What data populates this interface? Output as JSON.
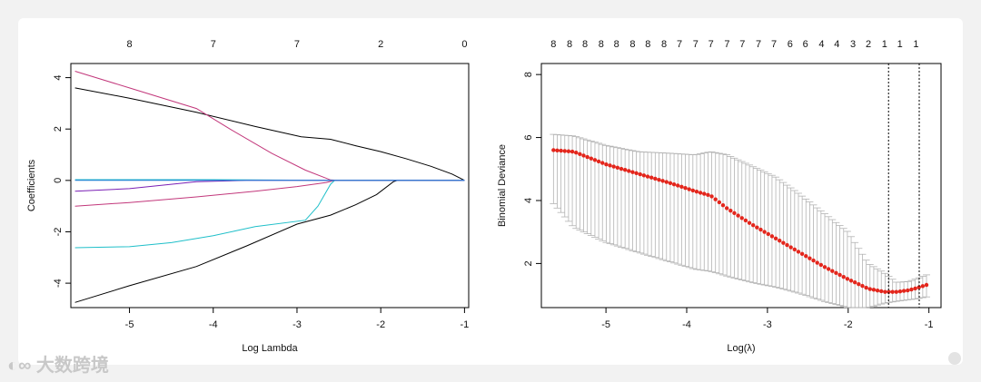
{
  "watermark": {
    "text": "大数跨境",
    "logo": "chat-bubble-logo"
  },
  "chart_data": [
    {
      "type": "line",
      "title": "",
      "xlabel": "Log Lambda",
      "ylabel": "Coefficients",
      "xlim": [
        -5.7,
        -0.95
      ],
      "ylim": [
        -4.95,
        4.55
      ],
      "xticks": [
        -5,
        -4,
        -3,
        -2,
        -1
      ],
      "yticks": [
        -4,
        -2,
        0,
        2,
        4
      ],
      "top_axis": {
        "positions": [
          -5,
          -4,
          -3,
          -2,
          -1
        ],
        "labels": [
          "8",
          "7",
          "7",
          "2",
          "0"
        ]
      },
      "series": [
        {
          "color": "#000000",
          "points": [
            [
              -5.65,
              3.6
            ],
            [
              -5.0,
              3.2
            ],
            [
              -4.2,
              2.65
            ],
            [
              -3.5,
              2.1
            ],
            [
              -2.95,
              1.7
            ],
            [
              -2.6,
              1.6
            ],
            [
              -2.3,
              1.35
            ],
            [
              -2.0,
              1.12
            ],
            [
              -1.7,
              0.85
            ],
            [
              -1.4,
              0.55
            ],
            [
              -1.15,
              0.25
            ],
            [
              -1.0,
              0.0
            ]
          ]
        },
        {
          "color": "#000000",
          "points": [
            [
              -5.65,
              -4.75
            ],
            [
              -5.0,
              -4.1
            ],
            [
              -4.2,
              -3.35
            ],
            [
              -3.6,
              -2.55
            ],
            [
              -3.0,
              -1.7
            ],
            [
              -2.6,
              -1.35
            ],
            [
              -2.3,
              -0.95
            ],
            [
              -2.05,
              -0.55
            ],
            [
              -1.85,
              -0.05
            ],
            [
              -1.8,
              0.0
            ],
            [
              -1.0,
              0.0
            ]
          ]
        },
        {
          "color": "#c2377b",
          "points": [
            [
              -5.65,
              4.25
            ],
            [
              -5.0,
              3.6
            ],
            [
              -4.2,
              2.8
            ],
            [
              -3.8,
              2.0
            ],
            [
              -3.3,
              1.05
            ],
            [
              -2.9,
              0.4
            ],
            [
              -2.6,
              0.02
            ],
            [
              -2.5,
              0.0
            ],
            [
              -1.0,
              0.0
            ]
          ]
        },
        {
          "color": "#c2377b",
          "points": [
            [
              -5.65,
              -1.0
            ],
            [
              -5.0,
              -0.86
            ],
            [
              -4.2,
              -0.64
            ],
            [
              -3.5,
              -0.42
            ],
            [
              -3.0,
              -0.24
            ],
            [
              -2.65,
              -0.08
            ],
            [
              -2.55,
              0.0
            ],
            [
              -1.0,
              0.0
            ]
          ]
        },
        {
          "color": "#1fbfc9",
          "points": [
            [
              -5.65,
              -2.62
            ],
            [
              -5.0,
              -2.58
            ],
            [
              -4.5,
              -2.42
            ],
            [
              -4.0,
              -2.15
            ],
            [
              -3.5,
              -1.8
            ],
            [
              -2.9,
              -1.55
            ],
            [
              -2.75,
              -1.0
            ],
            [
              -2.6,
              -0.15
            ],
            [
              -2.55,
              0.0
            ],
            [
              -1.0,
              0.0
            ]
          ]
        },
        {
          "color": "#1fbfc9",
          "points": [
            [
              -5.65,
              0.03
            ],
            [
              -4.0,
              0.03
            ],
            [
              -2.6,
              0.0
            ],
            [
              -1.0,
              0.0
            ]
          ]
        },
        {
          "color": "#7a1fb5",
          "points": [
            [
              -5.65,
              -0.42
            ],
            [
              -5.0,
              -0.32
            ],
            [
              -4.2,
              -0.05
            ],
            [
              -3.6,
              0.0
            ],
            [
              -1.0,
              0.0
            ]
          ]
        },
        {
          "color": "#2a7ed8",
          "points": [
            [
              -5.65,
              0.0
            ],
            [
              -1.0,
              0.0
            ]
          ]
        }
      ]
    },
    {
      "type": "scatter",
      "title": "",
      "xlabel": "Log(λ)",
      "ylabel": "Binomial Deviance",
      "xlim": [
        -5.8,
        -0.85
      ],
      "ylim": [
        0.6,
        8.35
      ],
      "xticks": [
        -5,
        -4,
        -3,
        -2,
        -1
      ],
      "yticks": [
        2,
        4,
        6,
        8
      ],
      "top_axis": {
        "positions": [
          -5.65,
          -5.45,
          -5.26,
          -5.06,
          -4.87,
          -4.67,
          -4.48,
          -4.28,
          -4.09,
          -3.89,
          -3.7,
          -3.5,
          -3.31,
          -3.11,
          -2.92,
          -2.72,
          -2.53,
          -2.33,
          -2.14,
          -1.94,
          -1.75,
          -1.55,
          -1.36
        ],
        "labels": [
          "8",
          "8",
          "8",
          "8",
          "8",
          "8",
          "8",
          "8",
          "7",
          "7",
          "7",
          "7",
          "7",
          "7",
          "7",
          "6",
          "6",
          "4",
          "4",
          "3",
          "2",
          "1",
          "1"
        ]
      },
      "last_top_label": {
        "position": -1.16,
        "label": "1"
      },
      "deviance_curve": {
        "x_min": -5.65,
        "x_max": -1.03,
        "n_points": 100,
        "knots_x": [
          -5.65,
          -5.4,
          -5.0,
          -4.6,
          -4.2,
          -3.9,
          -3.7,
          -3.5,
          -3.2,
          -2.9,
          -2.6,
          -2.3,
          -2.0,
          -1.75,
          -1.55,
          -1.4,
          -1.25,
          -1.15,
          -1.03
        ],
        "knots_y": [
          5.6,
          5.55,
          5.15,
          4.85,
          4.55,
          4.3,
          4.15,
          3.75,
          3.25,
          2.8,
          2.35,
          1.9,
          1.5,
          1.2,
          1.1,
          1.1,
          1.15,
          1.22,
          1.32
        ],
        "lower_offset_knots": [
          1.7,
          2.4,
          2.48,
          2.5,
          2.5,
          2.48,
          2.4,
          2.15,
          1.85,
          1.55,
          1.3,
          1.1,
          0.9,
          0.6,
          0.36,
          0.3,
          0.3,
          0.34,
          0.38
        ],
        "upper_offset_knots": [
          0.5,
          0.5,
          0.6,
          0.7,
          0.95,
          1.15,
          1.4,
          1.7,
          1.85,
          1.95,
          1.85,
          1.7,
          1.5,
          0.8,
          0.6,
          0.3,
          0.28,
          0.3,
          0.32
        ]
      },
      "vlines": [
        -1.5,
        -1.12
      ],
      "point_color": "#e3261c",
      "errorbar_color": "#b3b3b3"
    }
  ]
}
